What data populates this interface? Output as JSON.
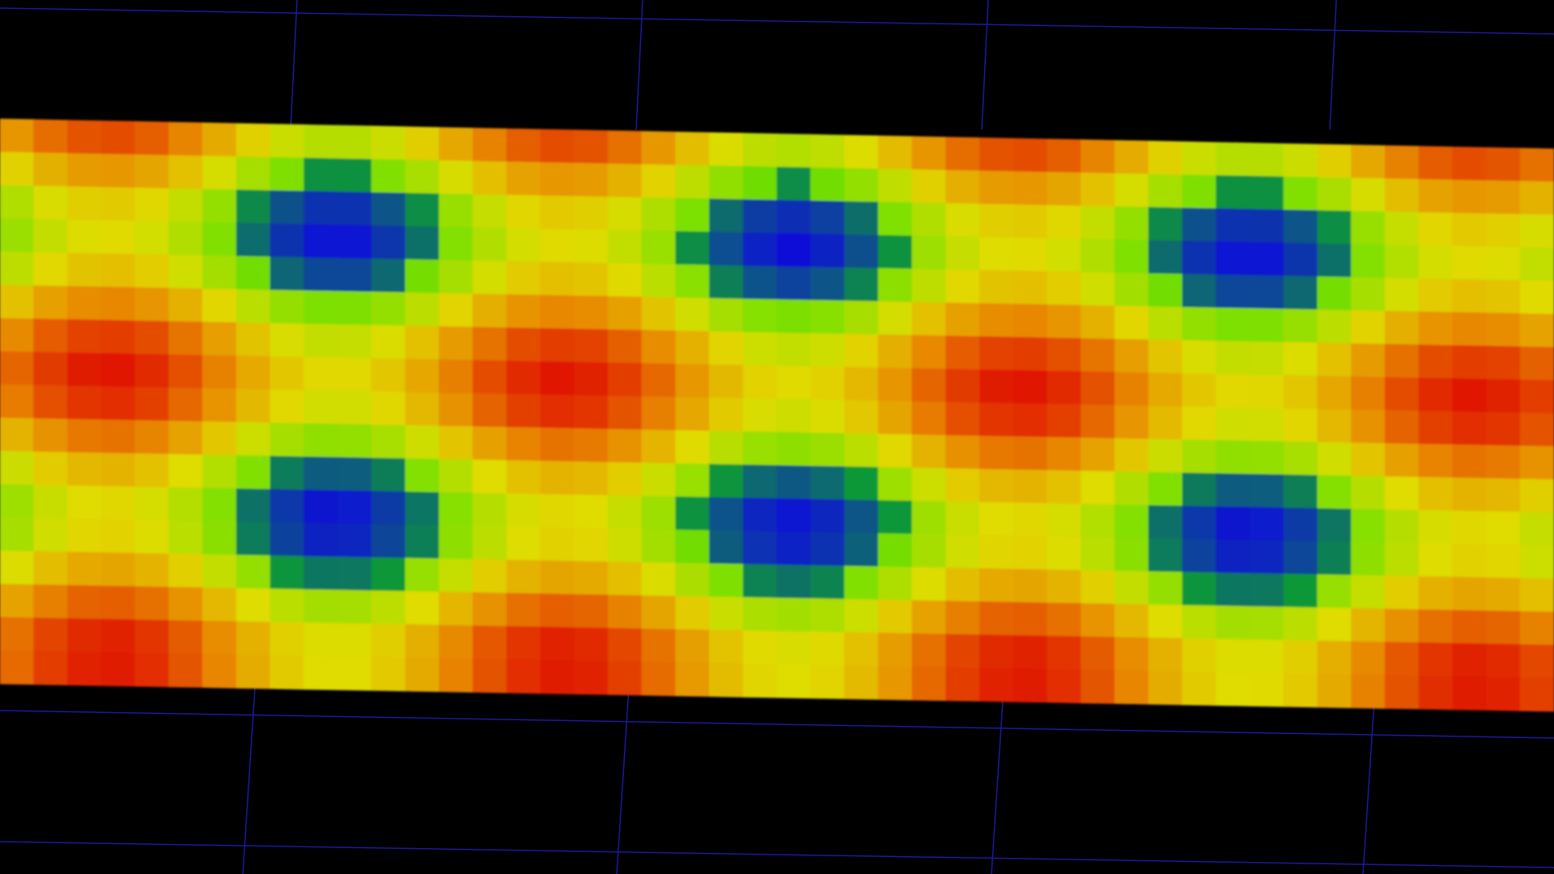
{
  "scene": {
    "background": "#000000",
    "grid_line_color": "#1a1aa0",
    "colormap": [
      "#0a10d8",
      "#12c800",
      "#7ee000",
      "#e0dc00",
      "#e88a00",
      "#e01800"
    ]
  }
}
